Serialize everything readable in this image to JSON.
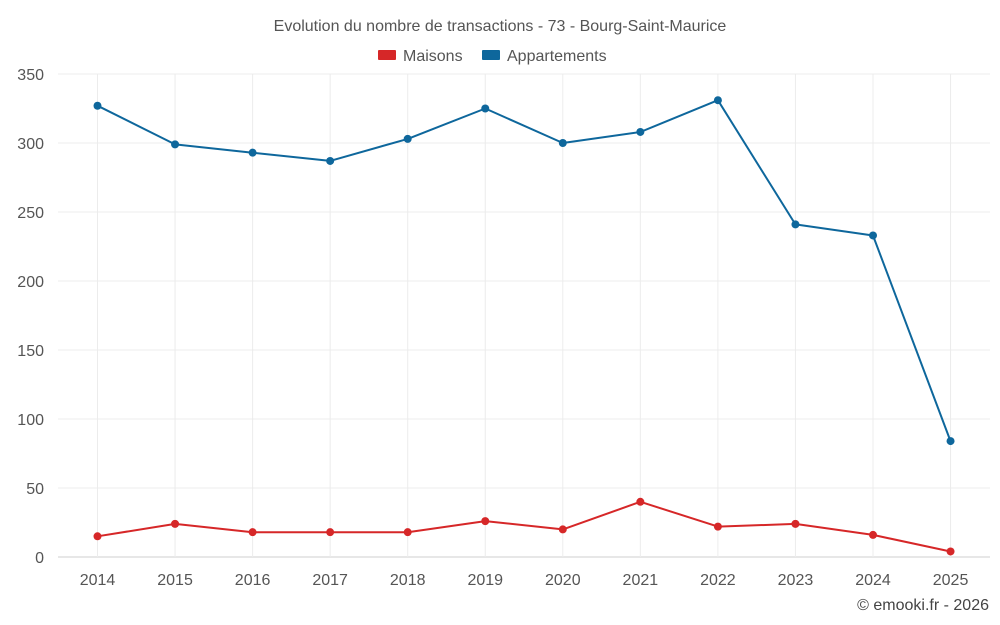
{
  "chart_data": {
    "type": "line",
    "title": "Evolution du nombre de transactions - 73 - Bourg-Saint-Maurice",
    "categories": [
      "2014",
      "2015",
      "2016",
      "2017",
      "2018",
      "2019",
      "2020",
      "2021",
      "2022",
      "2023",
      "2024",
      "2025"
    ],
    "series": [
      {
        "name": "Maisons",
        "color": "#d62728",
        "values": [
          15,
          24,
          18,
          18,
          18,
          26,
          20,
          40,
          22,
          24,
          16,
          4
        ]
      },
      {
        "name": "Appartements",
        "color": "#0e679c",
        "values": [
          327,
          299,
          293,
          287,
          303,
          325,
          300,
          308,
          331,
          241,
          233,
          84
        ]
      }
    ],
    "yticks": [
      "0",
      "50",
      "100",
      "150",
      "200",
      "250",
      "300",
      "350"
    ],
    "ylim": [
      0,
      350
    ],
    "xlabel": "",
    "ylabel": "",
    "grid": true,
    "legend_position": "top-center"
  },
  "credit": "© emooki.fr - 2026"
}
